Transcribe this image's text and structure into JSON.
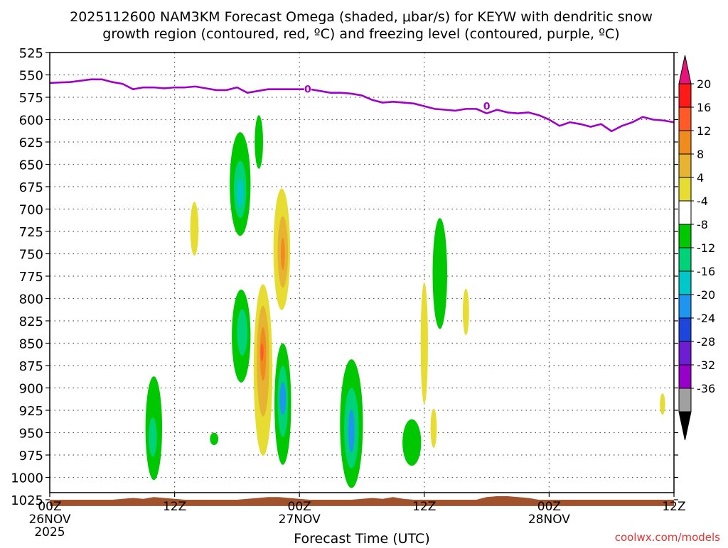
{
  "title_line1": "2025112600 NAM3KM Forecast Omega (shaded, μbar/s) for KEYW with dendritic snow",
  "title_line2": "growth region (contoured, red, ºC) and freezing level (contoured, purple, ºC)",
  "watermark": "coolwx.com/models",
  "chart_data": {
    "type": "heatmap",
    "title": "2025112600 NAM3KM Forecast Omega (shaded, μbar/s) for KEYW with dendritic snow growth region (contoured, red, ºC) and freezing level (contoured, purple, ºC)",
    "xlabel": "Forecast Time (UTC)",
    "ylabel": "",
    "x_unit": "forecast hour from 2025-11-26 00Z",
    "xlim": [
      0,
      60
    ],
    "ylim": [
      1025,
      525
    ],
    "y_scale": "linear (pressure, inverted)",
    "grid": true,
    "x_ticks": [
      {
        "x": 0,
        "label": "00Z",
        "date": "26NOV",
        "year": "2025"
      },
      {
        "x": 12,
        "label": "12Z"
      },
      {
        "x": 24,
        "label": "00Z",
        "date": "27NOV"
      },
      {
        "x": 36,
        "label": "12Z"
      },
      {
        "x": 48,
        "label": "00Z",
        "date": "28NOV"
      },
      {
        "x": 60,
        "label": "12Z"
      }
    ],
    "y_ticks": [
      525,
      550,
      575,
      600,
      625,
      650,
      675,
      700,
      725,
      750,
      775,
      800,
      825,
      850,
      875,
      900,
      925,
      950,
      975,
      1000,
      1025
    ],
    "colorbar": {
      "unit": "μbar/s",
      "labels": [
        "20",
        "16",
        "12",
        "8",
        "4",
        "-4",
        "-8",
        "-12",
        "-16",
        "-20",
        "-24",
        "-28",
        "-32",
        "-36"
      ],
      "bins": [
        {
          "color": "#ff1a1a"
        },
        {
          "color": "#ff5a28"
        },
        {
          "color": "#f08c1e"
        },
        {
          "color": "#e6b432"
        },
        {
          "color": "#e6dc32"
        },
        {
          "color": "#ffffff"
        },
        {
          "color": "#00c800"
        },
        {
          "color": "#00d278"
        },
        {
          "color": "#00c8c8"
        },
        {
          "color": "#1e96f0"
        },
        {
          "color": "#1e46dc"
        },
        {
          "color": "#6e1ed2"
        },
        {
          "color": "#9600c8"
        },
        {
          "color": "#a0a0a0"
        }
      ],
      "top_color": "#e6147a",
      "bottom_color": "#000000"
    },
    "freezing_level": {
      "label": "0",
      "color": "#a000c8",
      "label_points": [
        {
          "x": 24.8,
          "p": 566
        },
        {
          "x": 42.0,
          "p": 585
        }
      ],
      "x": [
        0,
        2,
        4,
        5,
        6,
        7,
        8,
        9,
        10,
        11,
        12,
        13,
        14,
        15,
        16,
        17,
        18,
        19,
        20,
        21,
        22,
        23,
        24,
        25,
        26,
        27,
        28,
        29,
        30,
        31,
        32,
        33,
        34,
        35,
        36,
        37,
        38,
        39,
        40,
        41,
        42,
        43,
        44,
        45,
        46,
        47,
        48,
        49,
        50,
        51,
        52,
        53,
        54,
        55,
        56,
        57,
        58,
        59,
        60
      ],
      "p": [
        559,
        558,
        555,
        555,
        558,
        560,
        566,
        564,
        564,
        565,
        564,
        564,
        563,
        565,
        567,
        567,
        564,
        570,
        568,
        566,
        566,
        566,
        566,
        566,
        568,
        570,
        570,
        571,
        573,
        578,
        581,
        580,
        581,
        582,
        585,
        588,
        589,
        590,
        588,
        588,
        593,
        589,
        592,
        593,
        592,
        595,
        600,
        607,
        603,
        605,
        608,
        605,
        613,
        607,
        603,
        597,
        600,
        601,
        603
      ]
    },
    "omega_regions": [
      {
        "x": 10.0,
        "p": 945,
        "dx": 0.8,
        "dp": 58,
        "fill": "#00c800",
        "cores": [
          {
            "x": 9.9,
            "p": 955,
            "dx": 0.4,
            "dp": 22,
            "fill": "#00d278"
          }
        ]
      },
      {
        "x": 15.8,
        "p": 957,
        "dx": 0.4,
        "dp": 7,
        "fill": "#00c800"
      },
      {
        "x": 18.3,
        "p": 672,
        "dx": 1.0,
        "dp": 58,
        "fill": "#00c800",
        "cores": [
          {
            "x": 18.3,
            "p": 678,
            "dx": 0.6,
            "dp": 32,
            "fill": "#00d278"
          },
          {
            "x": 18.3,
            "p": 682,
            "dx": 0.3,
            "dp": 16,
            "fill": "#00c8c8"
          }
        ]
      },
      {
        "x": 20.1,
        "p": 625,
        "dx": 0.4,
        "dp": 30,
        "fill": "#00c800"
      },
      {
        "x": 18.4,
        "p": 842,
        "dx": 0.9,
        "dp": 52,
        "fill": "#00c800",
        "cores": [
          {
            "x": 18.5,
            "p": 838,
            "dx": 0.5,
            "dp": 26,
            "fill": "#00d278"
          }
        ]
      },
      {
        "x": 22.4,
        "p": 918,
        "dx": 0.8,
        "dp": 68,
        "fill": "#00c800",
        "cores": [
          {
            "x": 22.4,
            "p": 915,
            "dx": 0.5,
            "dp": 40,
            "fill": "#00d278"
          },
          {
            "x": 22.4,
            "p": 912,
            "dx": 0.3,
            "dp": 18,
            "fill": "#1e96f0"
          }
        ]
      },
      {
        "x": 29.0,
        "p": 940,
        "dx": 1.1,
        "dp": 72,
        "fill": "#00c800",
        "cores": [
          {
            "x": 29.0,
            "p": 945,
            "dx": 0.7,
            "dp": 45,
            "fill": "#00d278"
          },
          {
            "x": 29.0,
            "p": 948,
            "dx": 0.3,
            "dp": 24,
            "fill": "#1e96f0"
          }
        ]
      },
      {
        "x": 34.8,
        "p": 961,
        "dx": 0.9,
        "dp": 26,
        "fill": "#00c800"
      },
      {
        "x": 37.5,
        "p": 772,
        "dx": 0.7,
        "dp": 62,
        "fill": "#00c800"
      },
      {
        "x": 13.9,
        "p": 722,
        "dx": 0.4,
        "dp": 30,
        "fill": "#e6dc32"
      },
      {
        "x": 22.3,
        "p": 745,
        "dx": 0.8,
        "dp": 68,
        "fill": "#e6dc32",
        "cores": [
          {
            "x": 22.4,
            "p": 748,
            "dx": 0.5,
            "dp": 40,
            "fill": "#e6b432"
          },
          {
            "x": 22.4,
            "p": 750,
            "dx": 0.2,
            "dp": 18,
            "fill": "#f08c1e"
          }
        ]
      },
      {
        "x": 20.5,
        "p": 880,
        "dx": 0.9,
        "dp": 96,
        "fill": "#e6dc32",
        "cores": [
          {
            "x": 20.5,
            "p": 870,
            "dx": 0.6,
            "dp": 62,
            "fill": "#e6b432"
          },
          {
            "x": 20.5,
            "p": 862,
            "dx": 0.3,
            "dp": 30,
            "fill": "#f08c1e"
          },
          {
            "x": 20.4,
            "p": 860,
            "dx": 0.15,
            "dp": 10,
            "fill": "#ff5a28"
          }
        ]
      },
      {
        "x": 36.0,
        "p": 850,
        "dx": 0.35,
        "dp": 68,
        "fill": "#e6dc32"
      },
      {
        "x": 36.9,
        "p": 945,
        "dx": 0.3,
        "dp": 22,
        "fill": "#e6dc32"
      },
      {
        "x": 40.0,
        "p": 815,
        "dx": 0.3,
        "dp": 26,
        "fill": "#e6dc32"
      },
      {
        "x": 58.9,
        "p": 918,
        "dx": 0.25,
        "dp": 12,
        "fill": "#e6dc32"
      }
    ],
    "terrain": {
      "color": "#a0522d",
      "x": [
        0,
        4,
        6,
        7,
        8,
        9,
        10,
        11,
        12,
        13,
        18,
        19,
        20,
        21,
        22,
        23,
        24,
        25,
        29,
        30,
        31,
        32,
        33,
        34,
        35,
        41,
        42,
        43,
        44,
        45,
        46,
        47,
        53,
        54,
        55,
        56,
        57,
        58,
        59,
        60
      ],
      "p": [
        1025,
        1025,
        1025,
        1024,
        1023,
        1024,
        1022,
        1023,
        1024,
        1025,
        1025,
        1024,
        1023,
        1022,
        1022,
        1023,
        1024,
        1025,
        1025,
        1024,
        1023,
        1024,
        1022,
        1024,
        1025,
        1025,
        1022,
        1021,
        1021,
        1022,
        1023,
        1025,
        1025,
        1025,
        1025,
        1025,
        1025,
        1025,
        1025,
        1025
      ],
      "base": 1032
    }
  }
}
